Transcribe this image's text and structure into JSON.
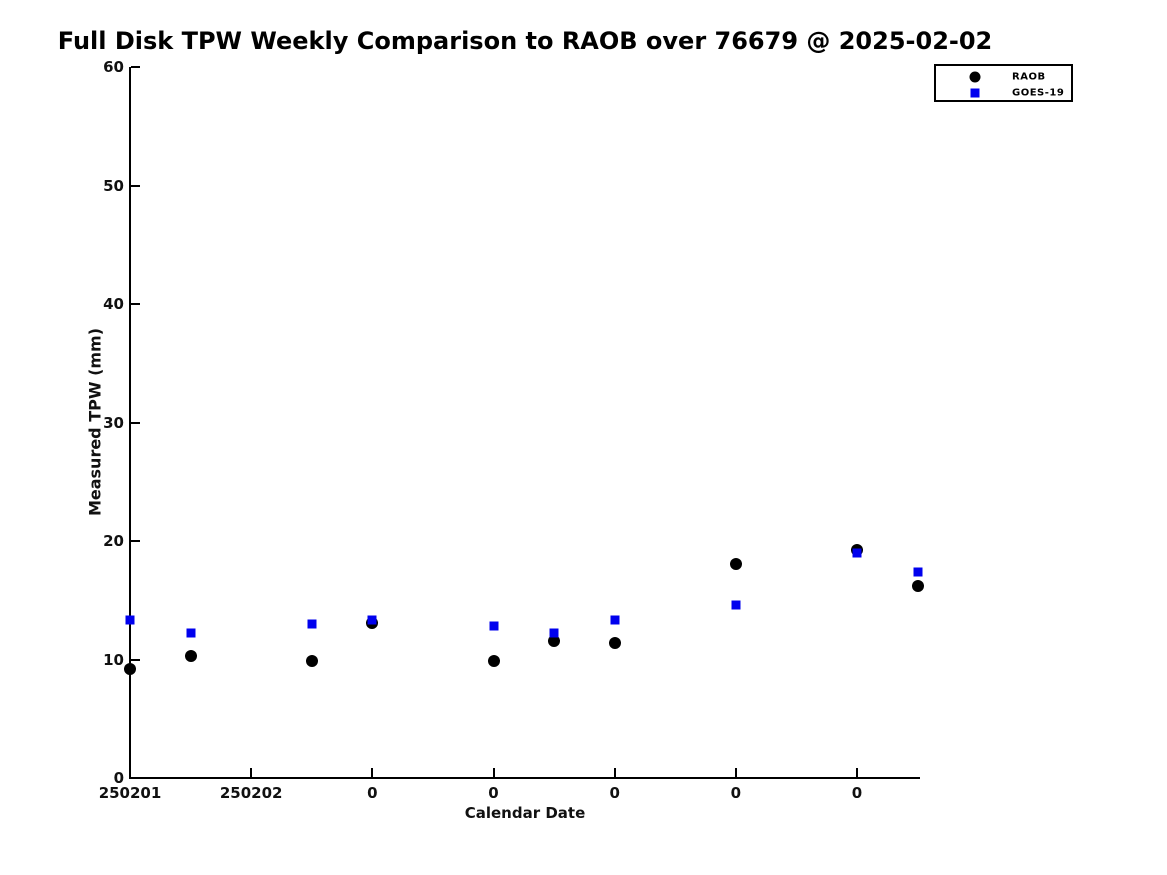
{
  "figure": {
    "title": "Full Disk TPW Weekly Comparison to RAOB over 76679 @ 2025-02-02"
  },
  "chart_data": {
    "type": "scatter",
    "title": "Full Disk TPW Weekly Comparison to RAOB over 76679 @ 2025-02-02",
    "xlabel": "Calendar Date",
    "ylabel": "Measured TPW (mm)",
    "x_unit": "days since 2025-02-01 00Z",
    "xlim_days": [
      0,
      6.52
    ],
    "ylim": [
      0,
      60
    ],
    "grid": false,
    "y_ticks": [
      0,
      10,
      20,
      30,
      40,
      50,
      60
    ],
    "x_tick_positions_days": [
      0,
      1,
      2,
      3,
      4,
      5,
      6
    ],
    "x_tick_labels": [
      "250201",
      "250202",
      "0",
      "0",
      "0",
      "0",
      "0"
    ],
    "x_days": [
      0,
      0.5,
      1.5,
      2,
      3,
      3.5,
      4,
      5,
      6,
      6.5
    ],
    "series": [
      {
        "name": "RAOB",
        "marker": "circle",
        "color": "#000000",
        "values": [
          9.2,
          10.3,
          9.9,
          13.1,
          9.9,
          11.6,
          11.4,
          18.1,
          19.2,
          16.2
        ]
      },
      {
        "name": "GOES-19",
        "marker": "square",
        "color": "#0000EE",
        "values": [
          13.3,
          12.2,
          13.0,
          13.3,
          12.8,
          12.2,
          13.3,
          14.6,
          19.0,
          17.4
        ]
      }
    ],
    "legend": {
      "position": "top-right",
      "entries": [
        {
          "label": "RAOB",
          "marker": "circle",
          "color": "#000000"
        },
        {
          "label": "GOES-19",
          "marker": "square",
          "color": "#0000EE"
        }
      ]
    }
  }
}
